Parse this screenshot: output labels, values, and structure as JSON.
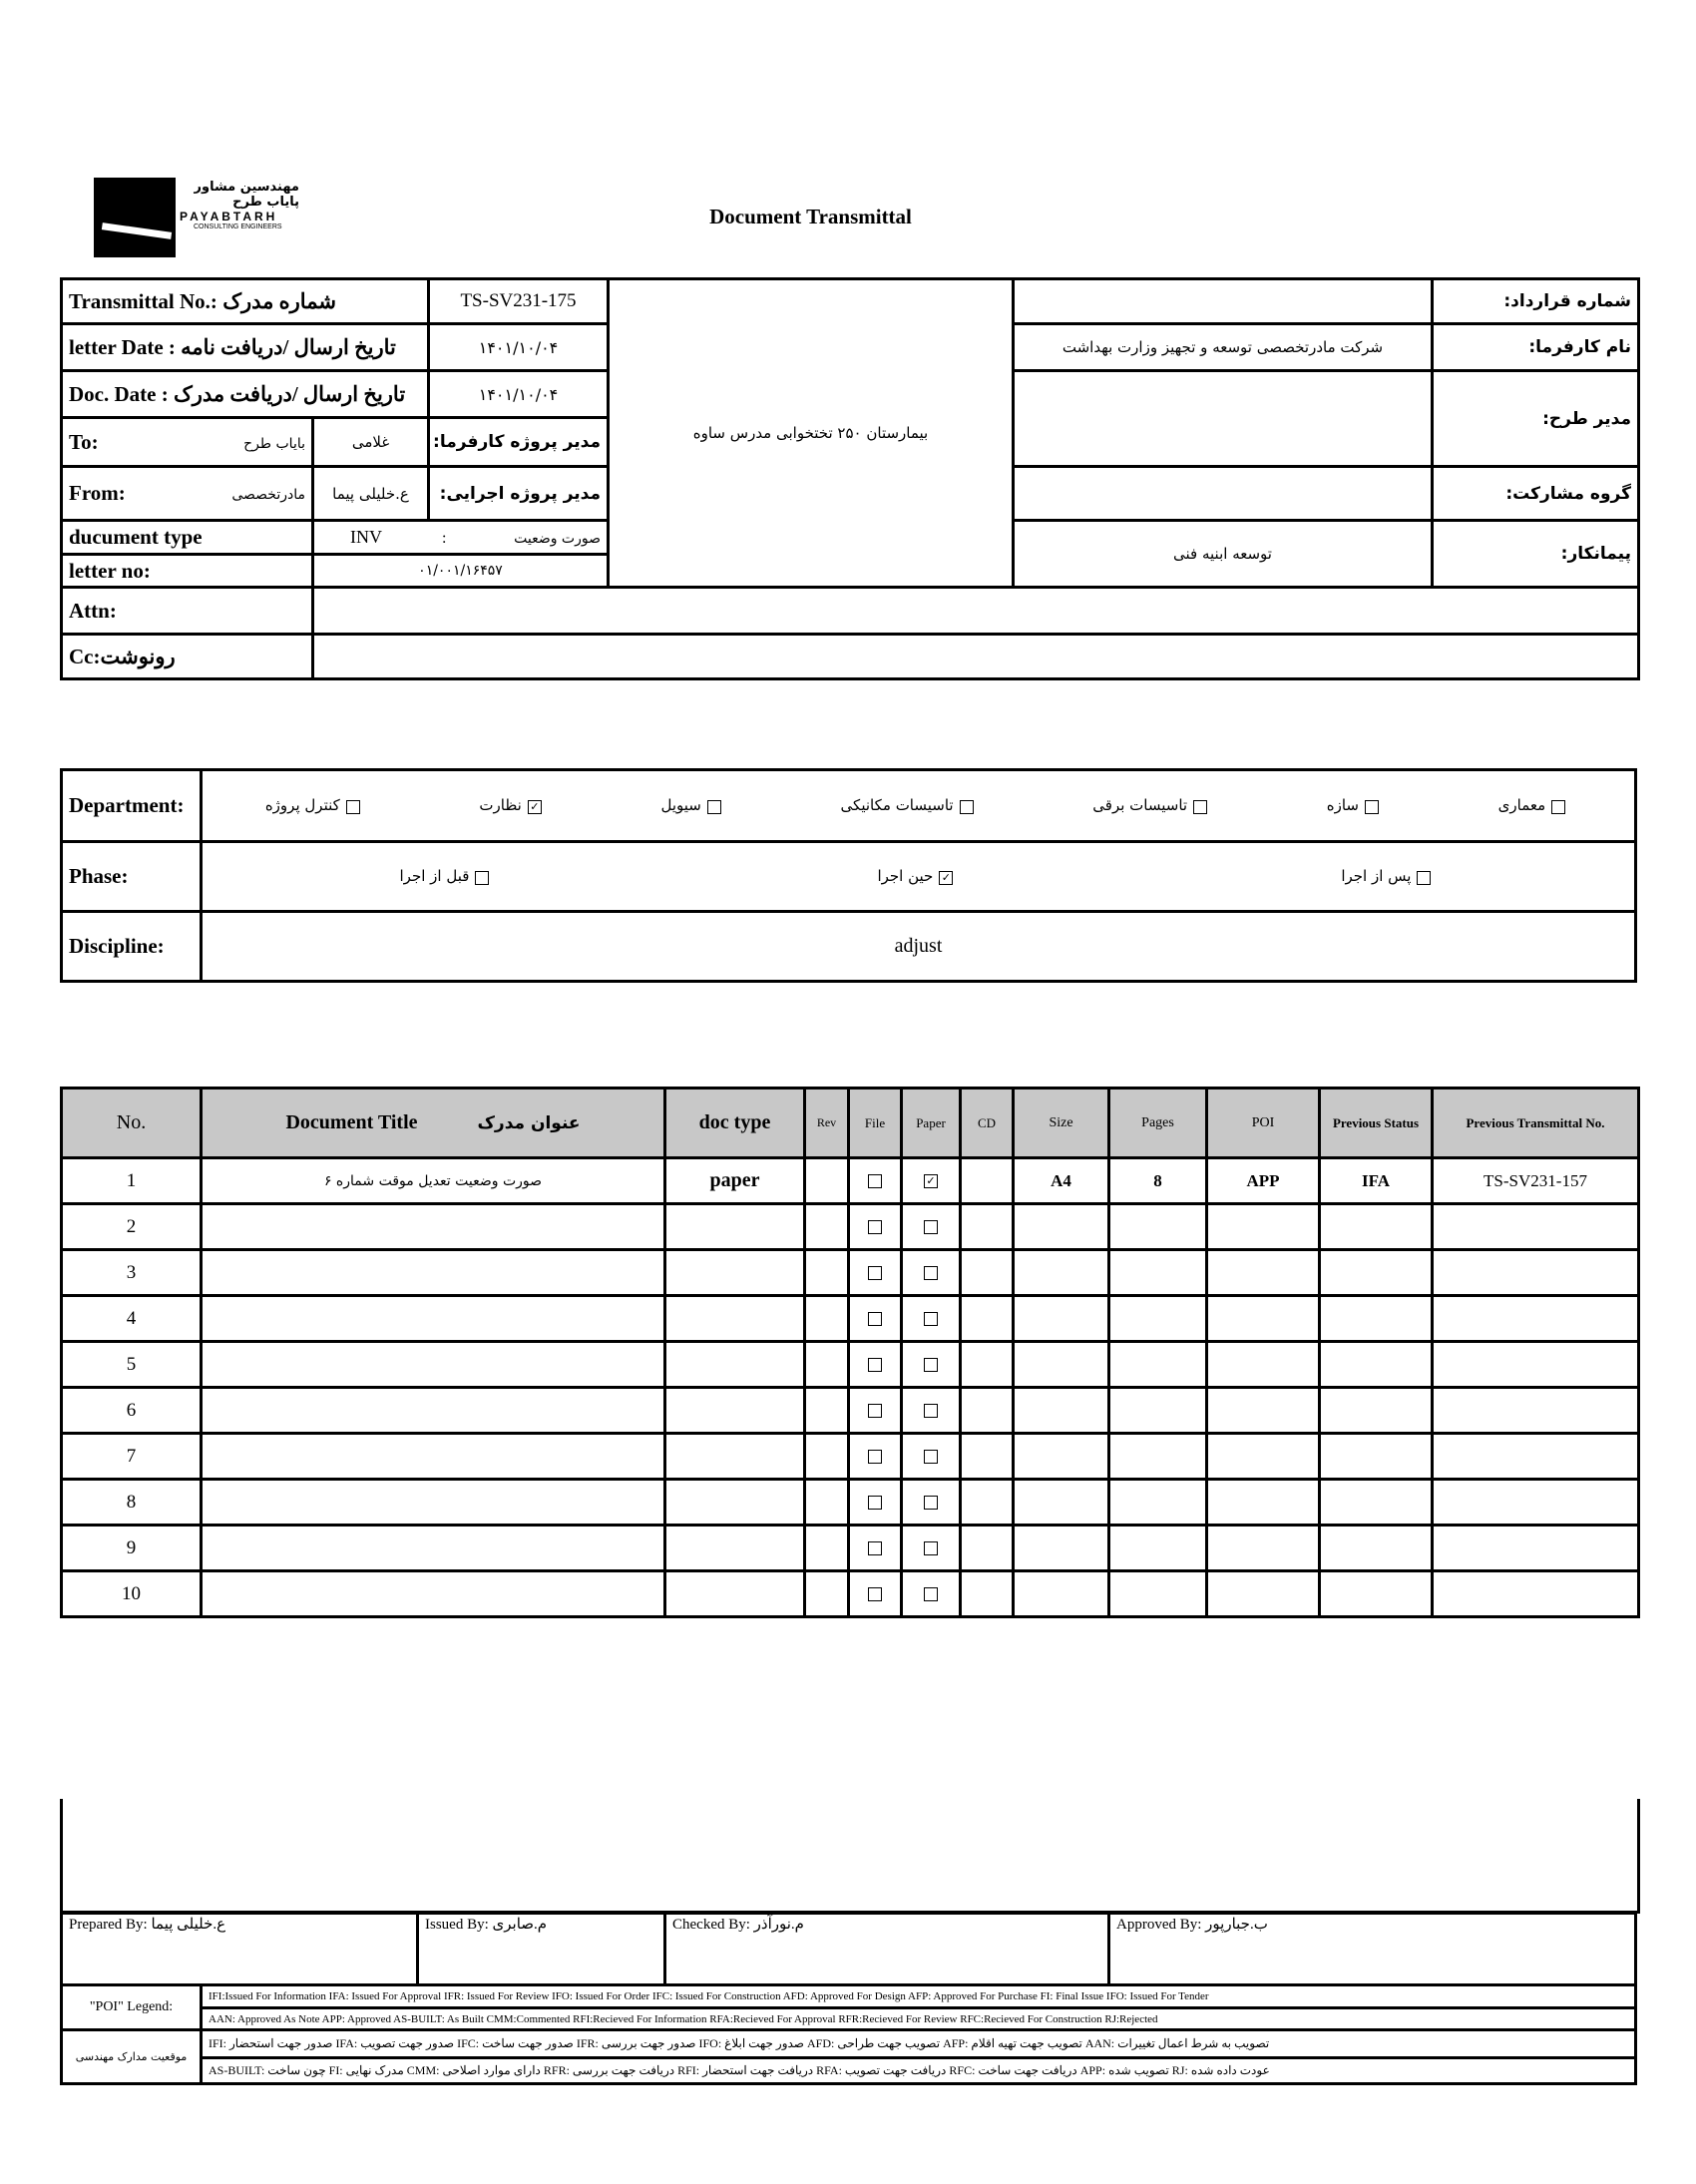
{
  "logo": {
    "fa": "مهندسین مشاور پایاب طرح",
    "en": "PAYABTARH",
    "sub": "CONSULTING ENGINEERS"
  },
  "title": "Document Transmittal",
  "header": {
    "transmittal_label": "Transmittal No.: شماره مدرک",
    "transmittal_no": "TS-SV231-175",
    "letter_date_label": "letter Date  :  تاریخ ارسال /دریافت نامه",
    "letter_date": "۱۴۰۱/۱۰/۰۴",
    "doc_date_label": "Doc. Date :    تاریخ ارسال /دریافت مدرک",
    "doc_date": "۱۴۰۱/۱۰/۰۴",
    "to_label": "To:",
    "to_value": "بایاب طرح",
    "to_person": "غلامی",
    "client_pm_label": "مدیر پروژه کارفرما:",
    "from_label": "From:",
    "from_value": "مادرتخصصی",
    "from_person": "ع.خلیلی پیما",
    "exec_pm_label": "مدیر پروژه اجرایی:",
    "doctype_label": "ducument type",
    "doctype_code": "INV",
    "doctype_sep": ":",
    "doctype_fa": "صورت وضعیت",
    "letter_no_label": "letter no:",
    "letter_no": "۰۱/۰۰۱/۱۶۴۵۷",
    "project": "بیمارستان ۲۵۰ تختخوابی مدرس ساوه",
    "contract_label": "شماره قرارداد:",
    "contract_value": "",
    "client_label": "نام کارفرما:",
    "client_value": "شرکت مادرتخصصی توسعه و تجهیز وزارت بهداشت",
    "plan_manager_label": "مدیر طرح:",
    "plan_manager_value": "",
    "partnership_label": "گروه مشارکت:",
    "partnership_value": "",
    "contractor_label": "پیمانکار:",
    "contractor_value": "توسعه ابنیه فنی",
    "attn_label": "Attn:",
    "cc_label": "Cc:رونوشت"
  },
  "department": {
    "label": "Department:",
    "items": [
      {
        "label": "کنترل پروژه",
        "checked": false
      },
      {
        "label": "نظارت",
        "checked": true
      },
      {
        "label": "سیویل",
        "checked": false
      },
      {
        "label": "تاسیسات مکانیکی",
        "checked": false
      },
      {
        "label": "تاسیسات برقی",
        "checked": false
      },
      {
        "label": "سازه",
        "checked": false
      },
      {
        "label": "معماری",
        "checked": false
      }
    ]
  },
  "phase": {
    "label": "Phase:",
    "items": [
      {
        "label": "قبل از اجرا",
        "checked": false
      },
      {
        "label": "حین اجرا",
        "checked": true
      },
      {
        "label": "پس از اجرا",
        "checked": false
      }
    ]
  },
  "discipline": {
    "label": "Discipline:",
    "value": "adjust"
  },
  "docs": {
    "columns": [
      "No.",
      "Document Title",
      "عنوان مدرک",
      "doc type",
      "Rev",
      "File",
      "Paper",
      "CD",
      "Size",
      "Pages",
      "POI",
      "Previous Status",
      "Previous Transmittal No."
    ],
    "rows": [
      {
        "no": "1",
        "title": "صورت وضعیت تعدیل موقت شماره ۶",
        "type": "paper",
        "rev": "",
        "file": false,
        "paper": true,
        "cd": "",
        "size": "A4",
        "pages": "8",
        "poi": "APP",
        "prev_status": "IFA",
        "prev_no": "TS-SV231-157"
      },
      {
        "no": "2"
      },
      {
        "no": "3"
      },
      {
        "no": "4"
      },
      {
        "no": "5"
      },
      {
        "no": "6"
      },
      {
        "no": "7"
      },
      {
        "no": "8"
      },
      {
        "no": "9"
      },
      {
        "no": "10"
      }
    ]
  },
  "signatures": {
    "prepared": "Prepared By: ع.خلیلی پیما",
    "issued": "Issued By: م.صابری",
    "checked": "Checked By: م.نورآذر",
    "approved": "Approved By: ب.جبارپور"
  },
  "legend": {
    "poi_label": "\"POI\" Legend:",
    "poi_line1": "IFI:Issued For Information  IFA: Issued For Approval  IFR: Issued For Review   IFO: Issued For Order  IFC: Issued For Construction AFD: Approved For Design AFP: Approved For Purchase  FI: Final Issue  IFO: Issued For Tender",
    "poi_line2": "AAN: Approved As Note  APP: Approved  AS-BUILT: As Built CMM:Commented  RFI:Recieved For Information  RFA:Recieved For Approval   RFR:Recieved For Review  RFC:Recieved For Construction  RJ:Rejected",
    "status_label": "موقعیت مدارک مهندسی",
    "status_line1": "IFI: صدور جهت استحضار   IFA: صدور جهت تصویب  IFC: صدور جهت ساخت  IFR: صدور جهت بررسی  IFO: صدور جهت ابلاغ   AFD: تصویب جهت طراحی   AFP: تصویب جهت تهیه اقلام   AAN: تصویب به شرط اعمال تغییرات",
    "status_line2": "AS-BUILT: چون ساخت  FI: مدرک نهایی  CMM: دارای موارد اصلاحی   RFR: دریافت جهت بررسی  RFI: دریافت جهت استحضار  RFA: دریافت جهت تصویب   RFC: دریافت جهت ساخت   APP: تصویب شده   RJ: عودت داده شده"
  }
}
